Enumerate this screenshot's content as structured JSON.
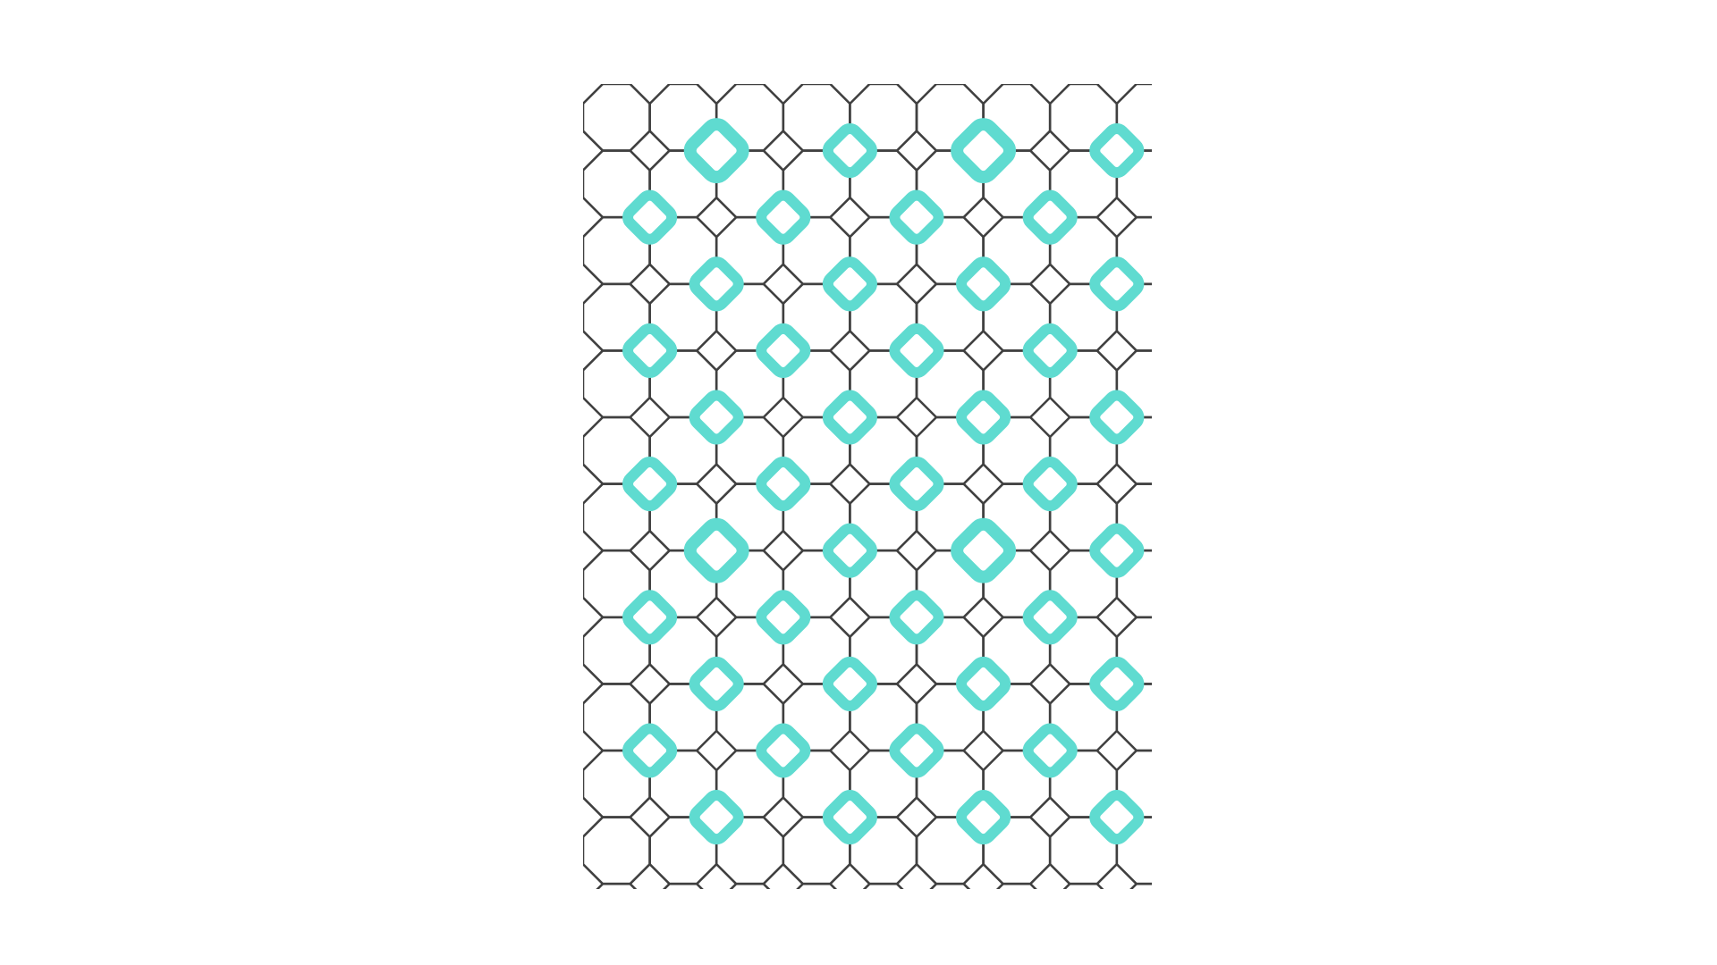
{
  "pattern": {
    "kind": "octagon-and-square tiling",
    "columns": 9,
    "rows": 13,
    "colors": {
      "background": "#ffffff",
      "outline": "#404040",
      "accent": "#5fdbd0"
    },
    "accent_shape": "rounded-diamond-ring"
  }
}
